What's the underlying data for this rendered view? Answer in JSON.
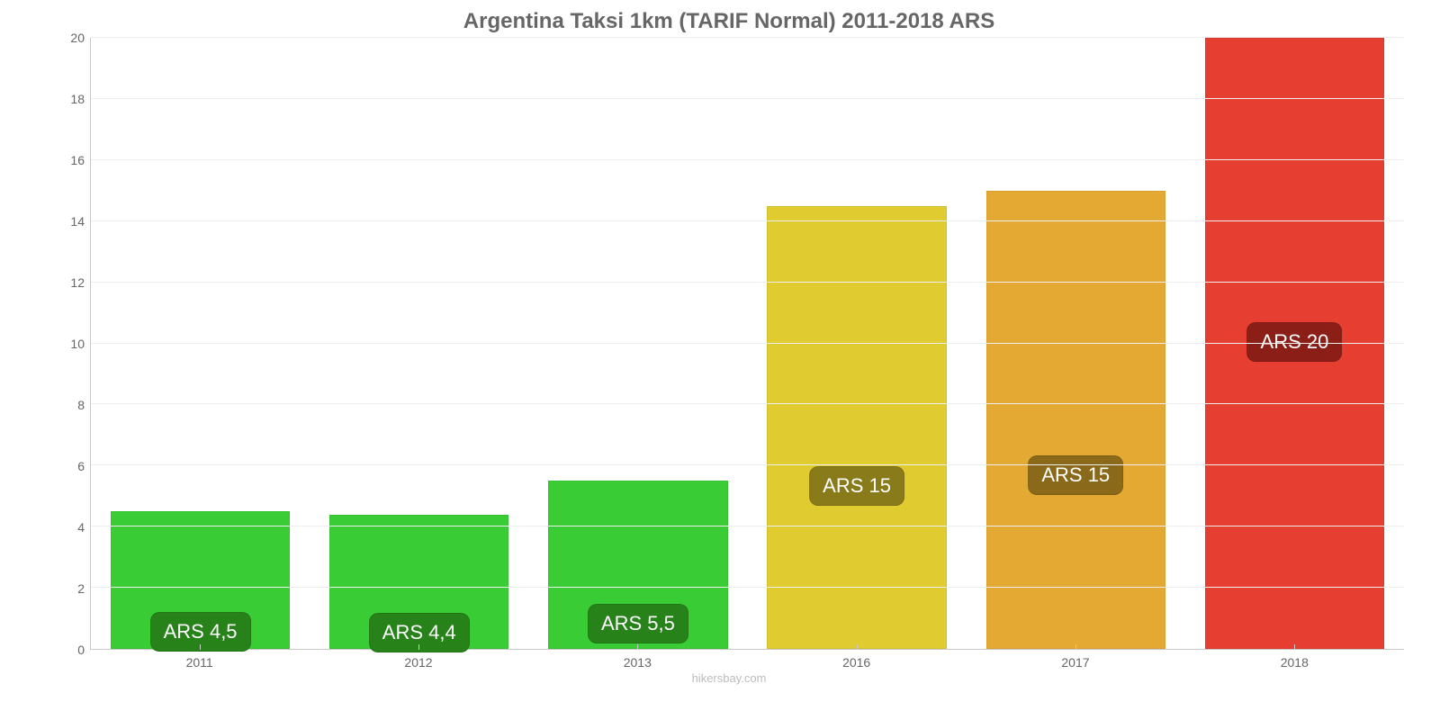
{
  "chart": {
    "type": "bar",
    "title": "Argentina Taksi 1km (TARIF Normal) 2011-2018 ARS",
    "title_color": "#666666",
    "title_fontsize": 24,
    "background_color": "#ffffff",
    "grid_color": "#eeeeee",
    "axis_color": "#c8c8c8",
    "tick_label_color": "#666666",
    "tick_label_fontsize": 14,
    "bar_width_pct": 82,
    "ylim": [
      0,
      20
    ],
    "yticks": [
      0,
      2,
      4,
      6,
      8,
      10,
      12,
      14,
      16,
      18,
      20
    ],
    "categories": [
      "2011",
      "2012",
      "2013",
      "2016",
      "2017",
      "2018"
    ],
    "values": [
      4.5,
      4.4,
      5.5,
      14.5,
      15,
      20
    ],
    "value_labels": [
      "ARS 4,5",
      "ARS 4,4",
      "ARS 5,5",
      "ARS 15",
      "ARS 15",
      "ARS 20"
    ],
    "bar_colors": [
      "#39cc35",
      "#39cc35",
      "#39cc35",
      "#e0cb31",
      "#e4a933",
      "#e63f32"
    ],
    "badge_bg_colors": [
      "#27821a",
      "#27821a",
      "#27821a",
      "#8a7b1a",
      "#8a6a1a",
      "#8b1f18"
    ],
    "badge_text_color": "#ffffff",
    "badge_fontsize": 22,
    "attribution": "hikersbay.com",
    "attribution_color": "#bcbcbc"
  }
}
